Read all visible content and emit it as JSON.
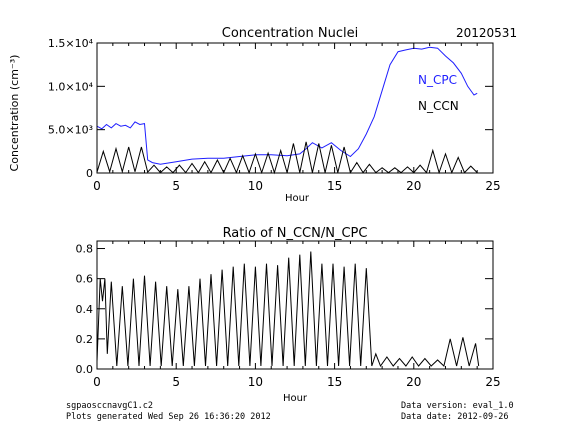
{
  "date_label": "20120531",
  "footer": {
    "filename": "sgpaosccnavgC1.c2",
    "generated": "Plots generated Wed Sep 26 16:36:20 2012",
    "data_version": "Data version: eval_1.0",
    "data_date": "Data date: 2012-09-26"
  },
  "colors": {
    "n_cpc": "#1f1fff",
    "n_ccn": "#000000",
    "axes": "#000000"
  },
  "chart_data": [
    {
      "type": "line",
      "title": "Concentration Nuclei",
      "xlabel": "Hour",
      "ylabel": "Concentration (cm⁻³)",
      "xlim": [
        0,
        25
      ],
      "ylim": [
        0,
        15000
      ],
      "x_ticks": [
        "0",
        "5",
        "10",
        "15",
        "20",
        "25"
      ],
      "y_ticks": [
        "0",
        "5.0×10³",
        "1.0×10⁴",
        "1.5×10⁴"
      ],
      "y_tick_values": [
        0,
        5000,
        10000,
        15000
      ],
      "series": [
        {
          "name": "N_CPC",
          "color": "#1f1fff",
          "x": [
            0,
            0.3,
            0.6,
            0.9,
            1.2,
            1.5,
            1.8,
            2.1,
            2.4,
            2.7,
            3.0,
            3.2,
            3.5,
            4,
            5,
            6,
            7,
            8,
            9,
            10,
            11,
            12,
            12.8,
            13.2,
            13.6,
            14.2,
            14.8,
            15.4,
            16.0,
            16.5,
            17.0,
            17.5,
            18.0,
            18.5,
            19.0,
            19.5,
            20.0,
            20.5,
            21.0,
            21.5,
            22.0,
            22.5,
            23.0,
            23.4,
            23.8,
            24.0
          ],
          "y": [
            5400,
            5100,
            5600,
            5200,
            5700,
            5400,
            5500,
            5200,
            5900,
            5600,
            5700,
            1500,
            1200,
            1000,
            1300,
            1600,
            1700,
            1700,
            1900,
            2100,
            2100,
            2000,
            2200,
            2800,
            3500,
            2900,
            3500,
            2600,
            1900,
            2800,
            4500,
            6500,
            9500,
            12500,
            14000,
            14200,
            14400,
            14300,
            14500,
            14400,
            13500,
            12700,
            11500,
            10000,
            9000,
            9200
          ]
        },
        {
          "name": "N_CCN",
          "color": "#000000",
          "x": [
            0,
            0.4,
            0.8,
            1.2,
            1.6,
            2.0,
            2.4,
            2.8,
            3.2,
            3.6,
            4.0,
            4.4,
            4.8,
            5.2,
            5.6,
            6.0,
            6.4,
            6.8,
            7.2,
            7.6,
            8.0,
            8.4,
            8.8,
            9.2,
            9.6,
            10.0,
            10.4,
            10.8,
            11.2,
            11.6,
            12.0,
            12.4,
            12.8,
            13.2,
            13.6,
            14.0,
            14.4,
            14.8,
            15.2,
            15.6,
            16.0,
            16.4,
            16.8,
            17.2,
            17.6,
            18.0,
            18.4,
            18.8,
            19.2,
            19.6,
            20.0,
            20.4,
            20.8,
            21.2,
            21.6,
            22.0,
            22.4,
            22.8,
            23.2,
            23.6,
            24.0
          ],
          "y": [
            100,
            2500,
            150,
            2800,
            150,
            3000,
            150,
            3000,
            100,
            900,
            50,
            700,
            50,
            900,
            50,
            1100,
            50,
            1300,
            50,
            1500,
            50,
            1700,
            50,
            2000,
            50,
            2200,
            50,
            2300,
            50,
            2600,
            50,
            3400,
            50,
            3600,
            50,
            3400,
            50,
            3200,
            50,
            3000,
            50,
            1200,
            50,
            1000,
            50,
            600,
            50,
            600,
            50,
            700,
            50,
            900,
            50,
            2600,
            50,
            2200,
            50,
            1800,
            50,
            800,
            50
          ]
        }
      ]
    },
    {
      "type": "line",
      "title": "Ratio of N_CCN/N_CPC",
      "xlabel": "Hour",
      "ylabel": "",
      "xlim": [
        0,
        25
      ],
      "ylim": [
        0,
        0.85
      ],
      "x_ticks": [
        "0",
        "5",
        "10",
        "15",
        "20",
        "25"
      ],
      "y_ticks": [
        "0.0",
        "0.2",
        "0.4",
        "0.6",
        "0.8"
      ],
      "y_tick_values": [
        0,
        0.2,
        0.4,
        0.6,
        0.8
      ],
      "series": [
        {
          "name": "",
          "color": "#000000",
          "x": [
            0,
            0.2,
            0.35,
            0.5,
            0.65,
            0.9,
            1.25,
            1.6,
            1.95,
            2.3,
            2.65,
            3.0,
            3.35,
            3.7,
            4.05,
            4.4,
            4.75,
            5.1,
            5.45,
            5.8,
            6.15,
            6.5,
            6.85,
            7.2,
            7.55,
            7.9,
            8.25,
            8.6,
            8.95,
            9.3,
            9.65,
            10.0,
            10.35,
            10.7,
            11.05,
            11.4,
            11.75,
            12.1,
            12.45,
            12.8,
            13.15,
            13.5,
            13.85,
            14.2,
            14.55,
            14.9,
            15.25,
            15.6,
            15.95,
            16.3,
            16.65,
            17.0,
            17.35,
            17.6,
            17.9,
            18.3,
            18.7,
            19.1,
            19.5,
            19.9,
            20.3,
            20.7,
            21.1,
            21.5,
            21.9,
            22.3,
            22.7,
            23.1,
            23.5,
            23.9,
            24.1
          ],
          "y": [
            0.05,
            0.6,
            0.45,
            0.6,
            0.1,
            0.58,
            0.02,
            0.55,
            0.02,
            0.6,
            0.02,
            0.62,
            0.02,
            0.58,
            0.02,
            0.55,
            0.02,
            0.53,
            0.02,
            0.55,
            0.02,
            0.6,
            0.02,
            0.63,
            0.02,
            0.66,
            0.02,
            0.68,
            0.02,
            0.7,
            0.02,
            0.68,
            0.02,
            0.7,
            0.02,
            0.69,
            0.02,
            0.74,
            0.02,
            0.76,
            0.02,
            0.78,
            0.02,
            0.7,
            0.02,
            0.7,
            0.02,
            0.68,
            0.02,
            0.7,
            0.02,
            0.67,
            0.02,
            0.1,
            0.02,
            0.08,
            0.02,
            0.07,
            0.02,
            0.08,
            0.02,
            0.07,
            0.02,
            0.06,
            0.02,
            0.2,
            0.02,
            0.21,
            0.02,
            0.17,
            0.02
          ]
        }
      ]
    }
  ]
}
